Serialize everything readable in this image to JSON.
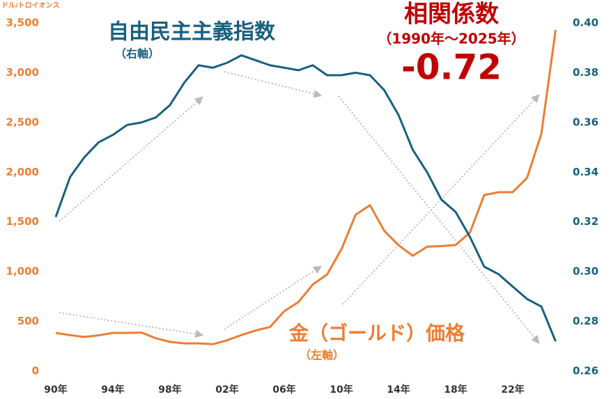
{
  "chart_data": {
    "type": "line",
    "left_axis_unit": "ドル/トロイオンス",
    "title_right_series": "自由民主主義指数",
    "right_series_note": "（右軸）",
    "title_left_series": "金（ゴールド）価格",
    "left_series_note": "（左軸）",
    "correlation_title": "相関係数",
    "correlation_period": "（1990年～2025年）",
    "correlation_value": -0.72,
    "categories": [
      "90年",
      null,
      null,
      null,
      "94年",
      null,
      null,
      null,
      "98年",
      null,
      null,
      null,
      "02年",
      null,
      null,
      null,
      "06年",
      null,
      null,
      null,
      "10年",
      null,
      null,
      null,
      "14年",
      null,
      null,
      null,
      "18年",
      null,
      null,
      null,
      "22年",
      null,
      null,
      null
    ],
    "series": [
      {
        "name": "金（ゴールド）価格",
        "color": "#ed7d31",
        "axis": "y",
        "values": [
          384,
          362,
          344,
          360,
          384,
          384,
          388,
          331,
          294,
          279,
          279,
          271,
          310,
          363,
          409,
          444,
          603,
          695,
          872,
          972,
          1225,
          1572,
          1669,
          1411,
          1266,
          1160,
          1251,
          1257,
          1268,
          1393,
          1770,
          1799,
          1800,
          1943,
          2386,
          3430
        ]
      },
      {
        "name": "自由民主主義指数",
        "color": "#17607d",
        "axis": "y2",
        "values": [
          0.322,
          0.338,
          0.346,
          0.352,
          0.355,
          0.359,
          0.36,
          0.362,
          0.367,
          0.376,
          0.383,
          0.382,
          0.384,
          0.387,
          0.385,
          0.383,
          0.382,
          0.381,
          0.383,
          0.379,
          0.379,
          0.38,
          0.379,
          0.373,
          0.363,
          0.349,
          0.34,
          0.329,
          0.324,
          0.314,
          0.302,
          0.299,
          0.294,
          0.289,
          0.286,
          0.272
        ]
      }
    ],
    "ylim": [
      0,
      3500
    ],
    "yticks": [
      0,
      500,
      {
        "value": 1000,
        "label": "1,000"
      },
      {
        "value": 1500,
        "label": "1,500"
      },
      {
        "value": 2000,
        "label": "2,000"
      },
      {
        "value": 2500,
        "label": "2,500"
      },
      {
        "value": 3000,
        "label": "3,000"
      },
      {
        "value": 3500,
        "label": "3,500"
      }
    ],
    "y2lim": [
      0.26,
      0.4
    ],
    "y2ticks": [
      0.26,
      0.28,
      {
        "value": 0.3,
        "label": "0.30"
      },
      0.32,
      0.34,
      0.36,
      0.38,
      {
        "value": 0.4,
        "label": "0.40"
      }
    ],
    "grid": false
  }
}
